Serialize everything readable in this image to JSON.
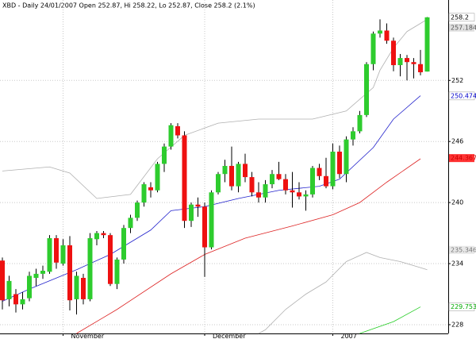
{
  "chart_data": {
    "type": "candlestick",
    "title": "XBD - Daily 24/01/2007 Open 252.87, Hi 258.22, Lo 252.87, Close 258.2 (2.1%)",
    "categories": [
      null,
      null,
      null,
      null,
      null,
      null,
      null,
      null,
      null,
      "November",
      null,
      null,
      null,
      null,
      null,
      null,
      null,
      null,
      null,
      null,
      null,
      null,
      null,
      null,
      null,
      null,
      null,
      null,
      null,
      null,
      "December",
      null,
      null,
      null,
      null,
      null,
      null,
      null,
      null,
      null,
      null,
      null,
      null,
      null,
      null,
      null,
      null,
      null,
      null,
      "2007",
      null,
      null,
      null,
      null,
      null,
      null,
      null,
      null,
      null,
      null,
      null,
      null,
      null,
      null
    ],
    "open": [
      234.3,
      230.5,
      231.0,
      230.0,
      230.6,
      232.6,
      233.0,
      233.2,
      236.5,
      234.0,
      235.8,
      230.5,
      232.6,
      230.5,
      236.4,
      237.0,
      236.8,
      232.0,
      234.4,
      237.5,
      238.5,
      240.0,
      241.5,
      241.2,
      243.8,
      245.5,
      247.5,
      246.6,
      238.2,
      239.8,
      239.6,
      235.6,
      241.0,
      242.8,
      243.6,
      241.6,
      243.8,
      242.5,
      241.0,
      240.5,
      241.8,
      242.8,
      242.3,
      241.2,
      241.0,
      240.6,
      240.8,
      243.4,
      242.6,
      241.6,
      245.0,
      242.8,
      246.2,
      247.0,
      248.6,
      253.6,
      256.6,
      256.9,
      255.9,
      253.5,
      254.2,
      253.8,
      253.6,
      252.87
    ],
    "high": [
      234.6,
      232.8,
      231.5,
      231.2,
      233.2,
      233.5,
      233.8,
      236.8,
      236.8,
      236.4,
      236.7,
      233.2,
      233.0,
      237.0,
      237.2,
      237.2,
      237.0,
      234.6,
      237.8,
      238.8,
      240.2,
      242.0,
      242.0,
      244.0,
      245.8,
      247.8,
      247.8,
      247.0,
      240.0,
      240.5,
      240.0,
      241.2,
      243.0,
      244.2,
      245.5,
      244.0,
      244.8,
      243.0,
      242.0,
      242.2,
      243.2,
      244.0,
      242.8,
      243.0,
      242.0,
      241.2,
      243.6,
      243.8,
      244.4,
      245.8,
      245.6,
      246.5,
      247.4,
      249.0,
      253.8,
      256.8,
      258.0,
      257.6,
      256.2,
      254.6,
      254.5,
      254.2,
      255.0,
      258.22
    ],
    "low": [
      229.5,
      229.8,
      229.2,
      229.5,
      230.3,
      231.8,
      232.5,
      233.0,
      233.5,
      233.8,
      229.4,
      229.0,
      230.0,
      230.3,
      235.8,
      236.5,
      231.8,
      231.5,
      234.0,
      237.0,
      238.2,
      239.6,
      240.5,
      241.0,
      243.0,
      245.2,
      246.3,
      237.5,
      237.6,
      238.6,
      232.7,
      235.4,
      240.8,
      242.0,
      241.2,
      241.0,
      242.0,
      240.6,
      240.0,
      240.0,
      241.4,
      242.2,
      240.8,
      239.5,
      240.3,
      239.2,
      240.5,
      242.2,
      241.4,
      241.3,
      242.4,
      242.0,
      245.6,
      246.8,
      248.4,
      253.0,
      256.2,
      255.6,
      252.9,
      252.4,
      252.0,
      252.2,
      252.5,
      252.87
    ],
    "close": [
      230.4,
      232.3,
      230.0,
      230.5,
      232.8,
      233.0,
      233.3,
      236.5,
      234.1,
      235.8,
      230.4,
      232.8,
      230.5,
      236.5,
      237.0,
      236.8,
      232.0,
      234.4,
      237.5,
      238.5,
      240.0,
      241.8,
      241.2,
      243.8,
      245.5,
      247.6,
      246.6,
      238.2,
      239.8,
      239.6,
      235.6,
      241.0,
      242.8,
      243.6,
      241.6,
      243.8,
      242.5,
      241.0,
      240.5,
      241.8,
      242.8,
      242.3,
      241.2,
      241.0,
      240.6,
      240.8,
      243.4,
      242.6,
      241.6,
      245.0,
      242.8,
      246.2,
      247.0,
      248.6,
      253.6,
      256.6,
      256.9,
      255.9,
      253.5,
      254.2,
      253.8,
      253.6,
      252.8,
      258.2
    ],
    "up_color": "#2ecc2e",
    "down_color": "#ee1111",
    "series": [
      {
        "color": "#b0b0b0",
        "x": [
          0,
          7,
          10,
          14,
          19,
          23,
          27,
          32,
          38,
          46,
          51,
          55,
          56,
          58,
          60,
          63
        ],
        "values": [
          243.1,
          243.5,
          242.9,
          240.4,
          240.8,
          244.3,
          246.6,
          247.8,
          248.2,
          248.2,
          249.0,
          251.3,
          253.0,
          255.2,
          256.8,
          258.0
        ]
      },
      {
        "color": "#b0b0b0",
        "x": [
          38,
          39,
          42,
          45,
          48,
          51,
          54,
          56,
          59,
          62,
          63
        ],
        "values": [
          227.14,
          227.5,
          229.5,
          231.0,
          232.2,
          234.2,
          235.1,
          234.6,
          234.2,
          233.6,
          233.4
        ]
      },
      {
        "color": "#2222cc",
        "x": [
          0,
          4,
          11,
          16,
          22,
          25,
          30,
          35,
          41,
          47,
          50,
          55,
          58,
          62
        ],
        "values": [
          230.3,
          231.5,
          233.4,
          234.9,
          237.3,
          239.2,
          239.6,
          240.4,
          241.2,
          241.6,
          242.3,
          245.4,
          248.2,
          250.5
        ]
      },
      {
        "color": "#dd2222",
        "x": [
          11,
          17,
          25,
          30,
          36,
          43,
          49,
          53,
          57,
          62
        ],
        "values": [
          227.14,
          229.5,
          233.0,
          234.9,
          236.5,
          237.7,
          238.8,
          240.0,
          242.0,
          244.3
        ]
      },
      {
        "color": "#22cc22",
        "x": [
          53,
          58,
          62
        ],
        "values": [
          227.14,
          228.3,
          229.75
        ]
      }
    ],
    "price_labels": [
      {
        "value": 258.2,
        "color": "#000000",
        "background": "#ffffff"
      },
      {
        "value": 257.184,
        "color": "#555555",
        "background": "#e0e0e0"
      },
      {
        "value": 250.474,
        "color": "#0000cc",
        "background": "#ffffff"
      },
      {
        "value": 244.367,
        "color": "#cc0000",
        "background": "#ff3333"
      },
      {
        "value": 235.346,
        "color": "#777777",
        "background": "#e8e8e8"
      },
      {
        "value": 229.753,
        "color": "#00aa00",
        "background": "#ffffff"
      }
    ],
    "ylim": [
      227.14,
      259.9
    ],
    "yticks": [
      228,
      234,
      240,
      246,
      252
    ],
    "grid": true
  }
}
